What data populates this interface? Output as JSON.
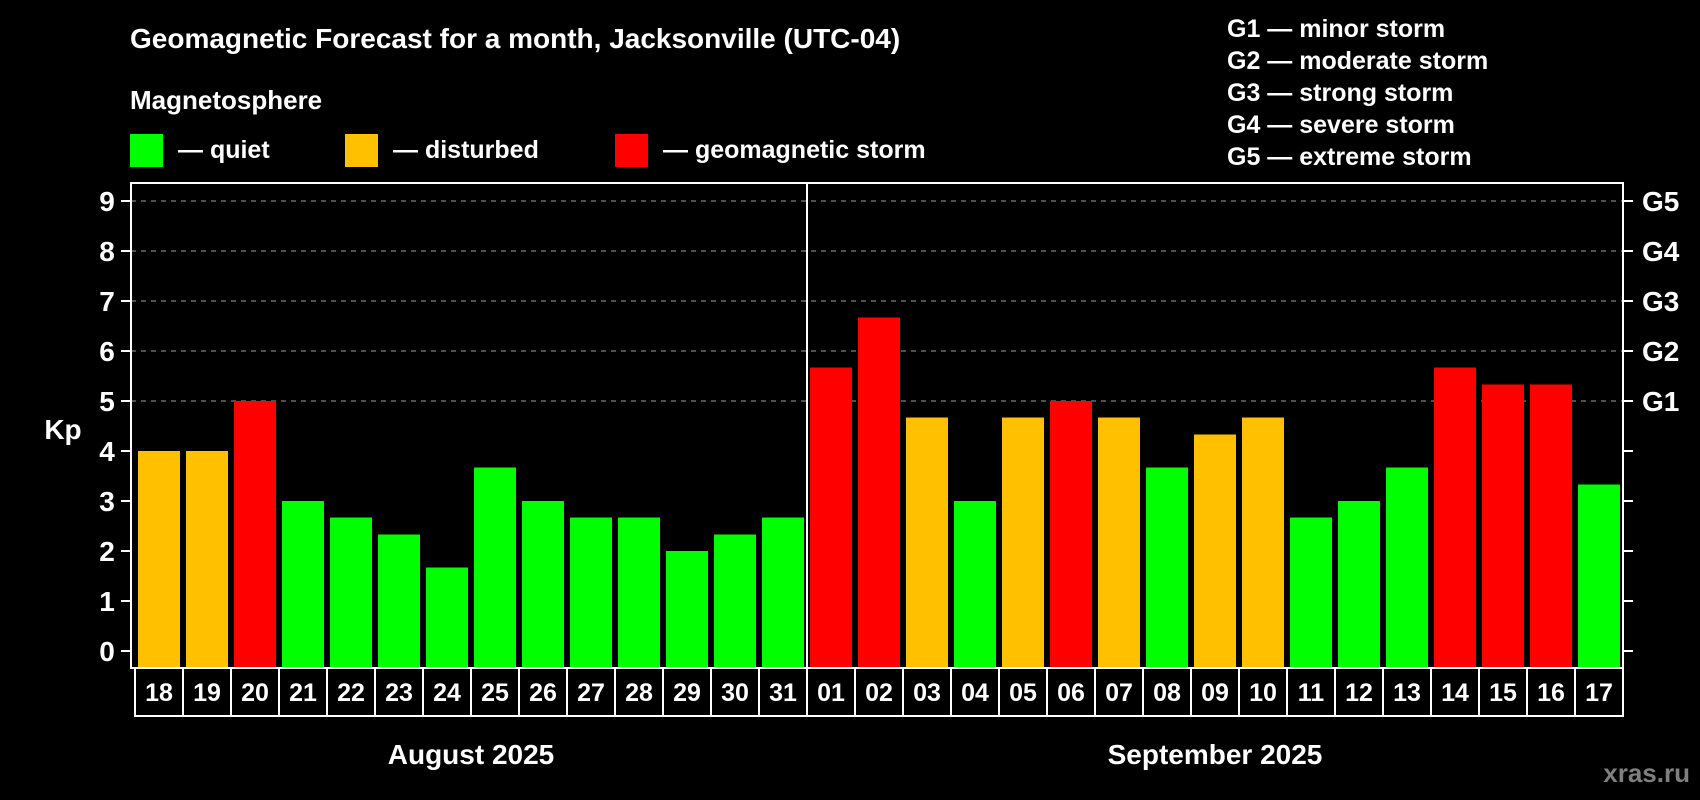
{
  "chart_data": {
    "type": "bar",
    "title": "Geomagnetic Forecast for a month, Jacksonville (UTC-04)",
    "subtitle": "Magnetosphere",
    "ylabel": "Kp",
    "ylim": [
      0,
      9
    ],
    "yticks": [
      0,
      1,
      2,
      3,
      4,
      5,
      6,
      7,
      8,
      9
    ],
    "right_axis_labels": [
      {
        "kp": 5,
        "label": "G1"
      },
      {
        "kp": 6,
        "label": "G2"
      },
      {
        "kp": 7,
        "label": "G3"
      },
      {
        "kp": 8,
        "label": "G4"
      },
      {
        "kp": 9,
        "label": "G5"
      }
    ],
    "grid": "dashed horizontal at Kp 5-9",
    "legend": [
      {
        "key": "quiet",
        "label": "— quiet",
        "color": "#00FF00"
      },
      {
        "key": "disturbed",
        "label": "— disturbed",
        "color": "#FFC000"
      },
      {
        "key": "storm",
        "label": "— geomagnetic storm",
        "color": "#FF0000"
      }
    ],
    "storm_scale": [
      "G1 — minor storm",
      "G2 — moderate storm",
      "G3 — strong storm",
      "G4 — severe storm",
      "G5 — extreme storm"
    ],
    "months": [
      {
        "label": "August 2025",
        "start_index": 0,
        "count": 14
      },
      {
        "label": "September 2025",
        "start_index": 14,
        "count": 17
      }
    ],
    "categories": [
      "18",
      "19",
      "20",
      "21",
      "22",
      "23",
      "24",
      "25",
      "26",
      "27",
      "28",
      "29",
      "30",
      "31",
      "01",
      "02",
      "03",
      "04",
      "05",
      "06",
      "07",
      "08",
      "09",
      "10",
      "11",
      "12",
      "13",
      "14",
      "15",
      "16",
      "17"
    ],
    "values": [
      4,
      4,
      5,
      3,
      2.67,
      2.33,
      1.67,
      3.67,
      3,
      2.67,
      2.67,
      2,
      2.33,
      2.67,
      5.67,
      6.67,
      4.67,
      3,
      4.67,
      5,
      4.67,
      3.67,
      4.33,
      4.67,
      2.67,
      3,
      3.67,
      5.67,
      5.33,
      5.33,
      3.33
    ],
    "levels": [
      "disturbed",
      "disturbed",
      "storm",
      "quiet",
      "quiet",
      "quiet",
      "quiet",
      "quiet",
      "quiet",
      "quiet",
      "quiet",
      "quiet",
      "quiet",
      "quiet",
      "storm",
      "storm",
      "disturbed",
      "quiet",
      "disturbed",
      "storm",
      "disturbed",
      "quiet",
      "disturbed",
      "disturbed",
      "quiet",
      "quiet",
      "quiet",
      "storm",
      "storm",
      "storm",
      "quiet"
    ]
  },
  "watermark": "xras.ru"
}
